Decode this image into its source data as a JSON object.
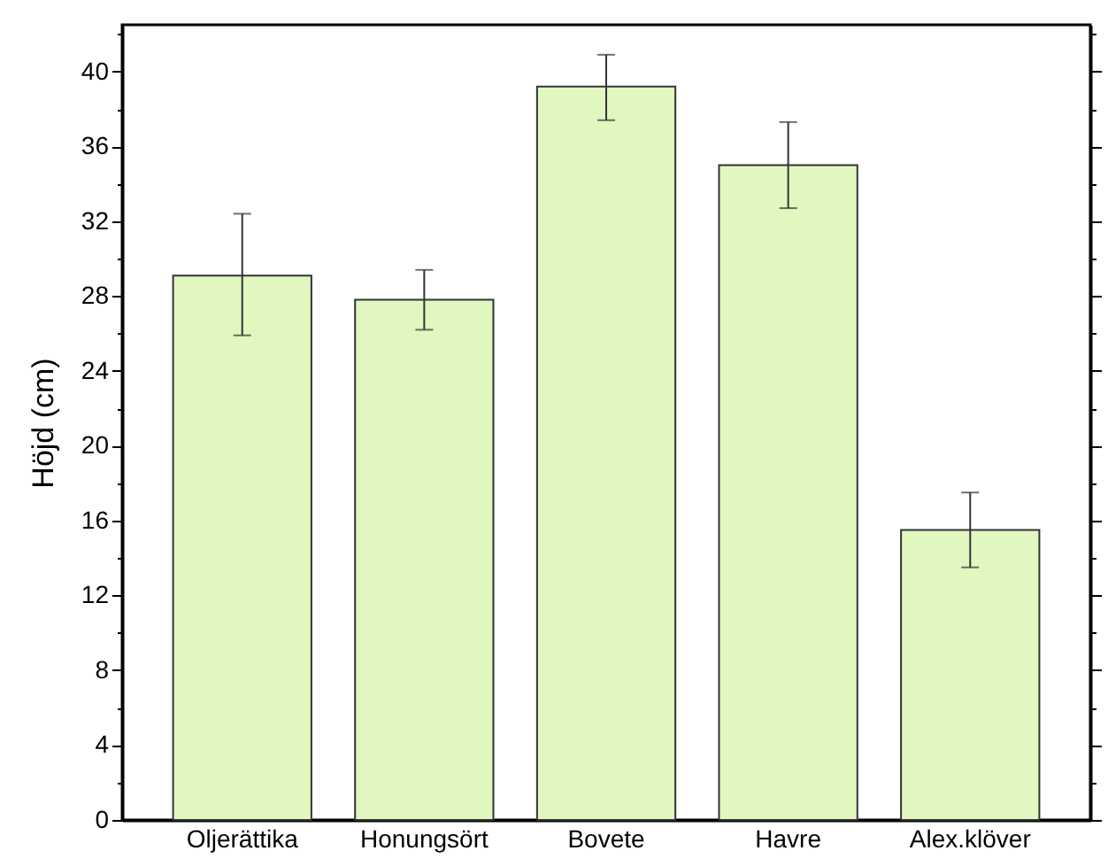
{
  "chart_data": {
    "type": "bar",
    "ylabel": "Höjd (cm)",
    "categories": [
      "Oljerättika",
      "Honungsört",
      "Bovete",
      "Havre",
      "Alex.klöver"
    ],
    "values": [
      29.1,
      27.8,
      39.2,
      35.0,
      15.5
    ],
    "errors": [
      [
        25.9,
        32.4
      ],
      [
        26.2,
        29.4
      ],
      [
        37.4,
        40.9
      ],
      [
        32.7,
        37.3
      ],
      [
        13.5,
        17.5
      ]
    ],
    "color": "#e0f7c0",
    "ylim": [
      0,
      42.5
    ],
    "yticks": [
      0,
      {
        "value": 2,
        "label": null
      },
      4,
      {
        "value": 6,
        "label": null
      },
      8,
      {
        "value": 10,
        "label": null
      },
      12,
      {
        "value": 14,
        "label": null
      },
      16,
      {
        "value": 18,
        "label": null
      },
      20,
      {
        "value": 22,
        "label": null
      },
      24,
      {
        "value": 26,
        "label": null
      },
      28,
      {
        "value": 30,
        "label": null
      },
      32,
      {
        "value": 34,
        "label": null
      },
      36,
      {
        "value": 38,
        "label": null
      },
      40,
      {
        "value": 42,
        "label": null
      }
    ],
    "grid": false
  }
}
